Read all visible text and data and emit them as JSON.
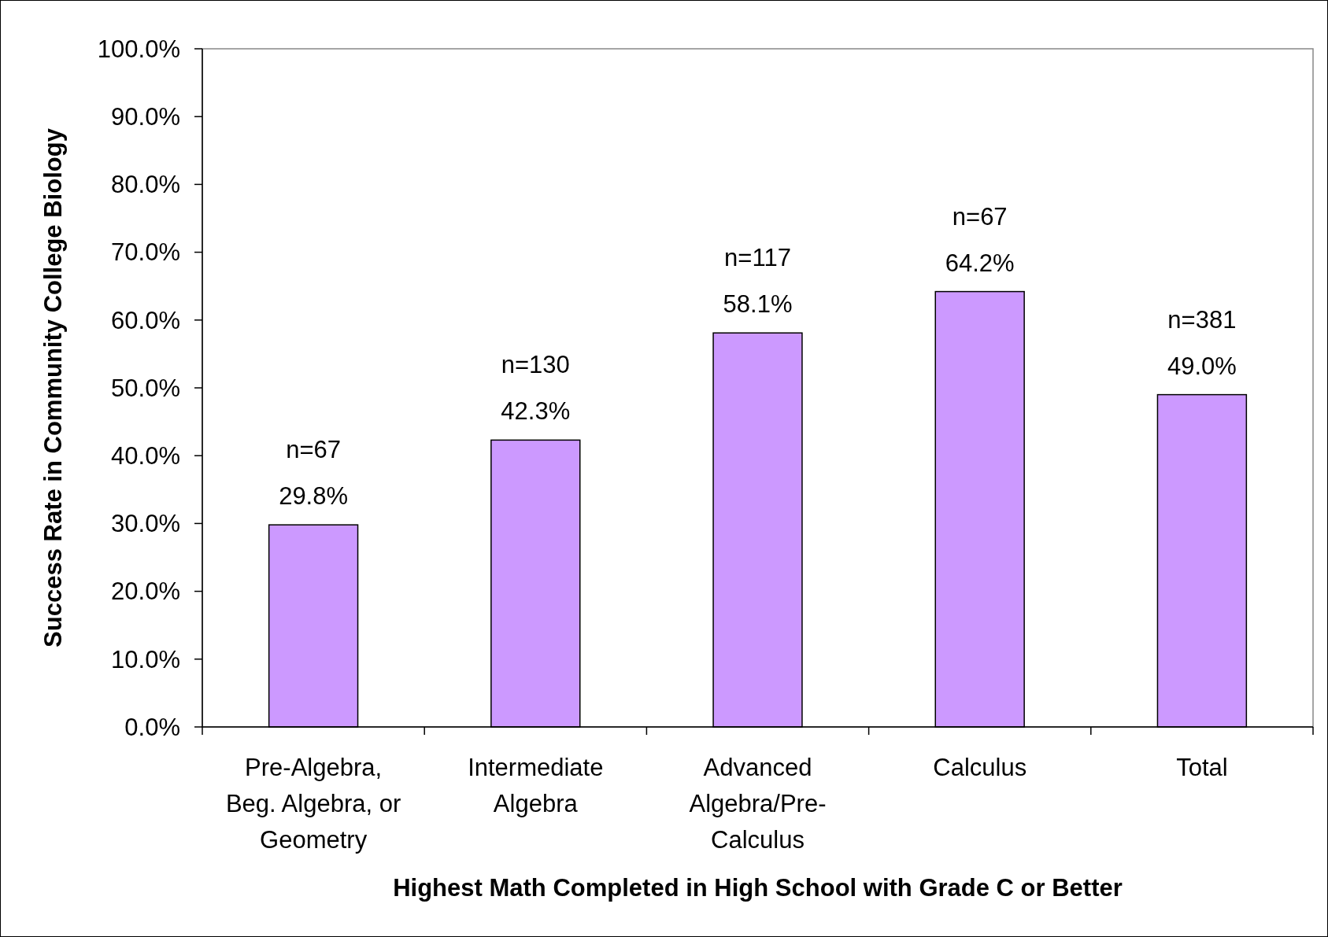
{
  "chart_data": {
    "type": "bar",
    "xlabel": "Highest Math Completed in High School with Grade C or Better",
    "ylabel": "Success Rate in Community College Biology",
    "categories": [
      "Pre-Algebra, Beg. Algebra, or Geometry",
      "Intermediate Algebra",
      "Advanced Algebra/Pre-Calculus",
      "Calculus",
      "Total"
    ],
    "values": [
      29.8,
      42.3,
      58.1,
      64.2,
      49.0
    ],
    "color": "#cc99ff",
    "value_labels": [
      "29.8%",
      "42.3%",
      "58.1%",
      "64.2%",
      "49.0%"
    ],
    "annotations": [
      {
        "text": "n=67",
        "x": "Pre-Algebra, Beg. Algebra, or Geometry",
        "y": 29.8
      },
      {
        "text": "n=130",
        "x": "Intermediate Algebra",
        "y": 42.3
      },
      {
        "text": "n=117",
        "x": "Advanced Algebra/Pre-Calculus",
        "y": 58.1
      },
      {
        "text": "n=67",
        "x": "Calculus",
        "y": 64.2
      },
      {
        "text": "n=381",
        "x": "Total",
        "y": 49.0
      }
    ],
    "ylim": [
      0,
      100
    ],
    "yticks": [
      {
        "value": 0,
        "label": "0.0%"
      },
      {
        "value": 10,
        "label": "10.0%"
      },
      {
        "value": 20,
        "label": "20.0%"
      },
      {
        "value": 30,
        "label": "30.0%"
      },
      {
        "value": 40,
        "label": "40.0%"
      },
      {
        "value": 50,
        "label": "50.0%"
      },
      {
        "value": 60,
        "label": "60.0%"
      },
      {
        "value": 70,
        "label": "70.0%"
      },
      {
        "value": 80,
        "label": "80.0%"
      },
      {
        "value": 90,
        "label": "90.0%"
      },
      {
        "value": 100,
        "label": "100.0%"
      }
    ],
    "grid": false
  }
}
